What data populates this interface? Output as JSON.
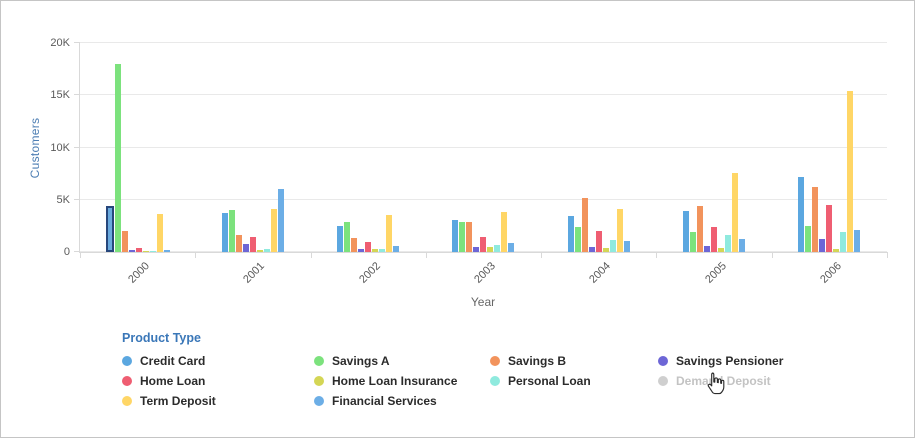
{
  "legend": {
    "title": "Product Type",
    "items": [
      {
        "label": "Credit Card",
        "color": "#5ba7e0",
        "enabled": true
      },
      {
        "label": "Savings A",
        "color": "#7ce27d",
        "enabled": true
      },
      {
        "label": "Savings B",
        "color": "#f2935c",
        "enabled": true
      },
      {
        "label": "Savings Pensioner",
        "color": "#6d66d6",
        "enabled": true
      },
      {
        "label": "Home Loan",
        "color": "#ef5e72",
        "enabled": true
      },
      {
        "label": "Home Loan Insurance",
        "color": "#d4d655",
        "enabled": true
      },
      {
        "label": "Personal Loan",
        "color": "#8feade",
        "enabled": true
      },
      {
        "label": "Demand Deposit",
        "color": "#cfcfcf",
        "enabled": false
      },
      {
        "label": "Term Deposit",
        "color": "#ffd666",
        "enabled": true
      },
      {
        "label": "Financial Services",
        "color": "#6caee6",
        "enabled": true
      }
    ]
  },
  "chart_data": {
    "type": "bar",
    "title": "",
    "xlabel": "Year",
    "ylabel": "Customers",
    "ylim": [
      0,
      20000
    ],
    "yticks": [
      "0",
      "5K",
      "10K",
      "15K",
      "20K"
    ],
    "grid": "horizontal",
    "legend_position": "bottom",
    "categories": [
      "2000",
      "2001",
      "2002",
      "2003",
      "2004",
      "2005",
      "2006"
    ],
    "series": [
      {
        "name": "Credit Card",
        "color": "#5ba7e0",
        "values": [
          4400,
          3700,
          2500,
          3050,
          3450,
          3900,
          7150
        ]
      },
      {
        "name": "Savings A",
        "color": "#7ce27d",
        "values": [
          18000,
          4000,
          2850,
          2850,
          2400,
          1900,
          2500
        ]
      },
      {
        "name": "Savings B",
        "color": "#f2935c",
        "values": [
          2000,
          1650,
          1350,
          2850,
          5150,
          4400,
          6200
        ]
      },
      {
        "name": "Savings Pensioner",
        "color": "#6d66d6",
        "values": [
          150,
          800,
          300,
          480,
          480,
          570,
          1250
        ]
      },
      {
        "name": "Home Loan",
        "color": "#ef5e72",
        "values": [
          420,
          1450,
          950,
          1450,
          2050,
          2400,
          4500
        ]
      },
      {
        "name": "Home Loan Insurance",
        "color": "#d4d655",
        "values": [
          120,
          230,
          280,
          450,
          400,
          350,
          250
        ]
      },
      {
        "name": "Personal Loan",
        "color": "#8feade",
        "values": [
          100,
          250,
          300,
          680,
          1150,
          1650,
          1950
        ]
      },
      {
        "name": "Term Deposit",
        "color": "#ffd666",
        "values": [
          3600,
          4100,
          3500,
          3800,
          4150,
          7550,
          15450
        ]
      },
      {
        "name": "Financial Services",
        "color": "#6caee6",
        "values": [
          180,
          6050,
          580,
          880,
          1050,
          1250,
          2150
        ]
      }
    ],
    "hidden_series": [
      "Demand Deposit"
    ],
    "highlight": {
      "series": "Credit Card",
      "category": "2000"
    }
  }
}
